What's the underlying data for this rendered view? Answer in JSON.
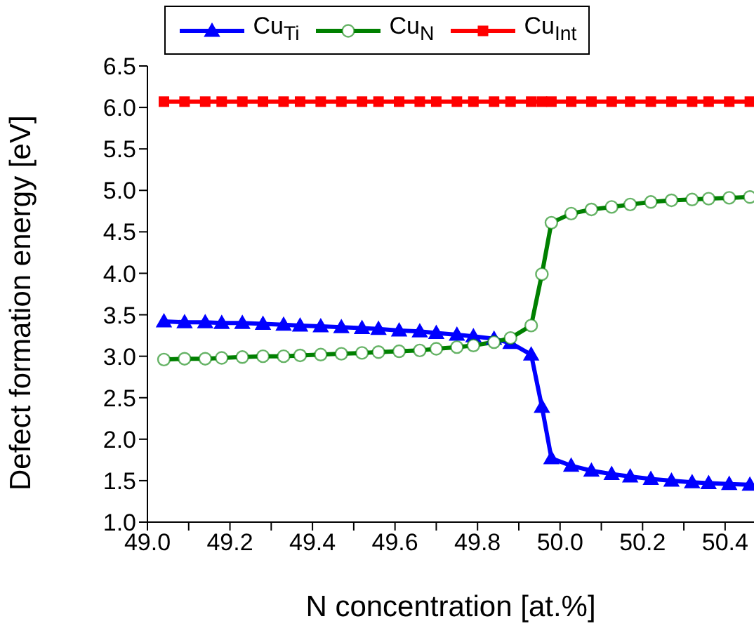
{
  "chart_data": {
    "type": "line",
    "xlabel": "N concentration [at.%]",
    "ylabel": "Defect formation energy [eV]",
    "x": [
      49.04,
      49.09,
      49.14,
      49.18,
      49.23,
      49.28,
      49.33,
      49.37,
      49.42,
      49.47,
      49.52,
      49.56,
      49.61,
      49.66,
      49.7,
      49.75,
      49.79,
      49.84,
      49.88,
      49.93,
      49.956,
      49.979,
      50.027,
      50.076,
      50.125,
      50.17,
      50.22,
      50.27,
      50.32,
      50.36,
      50.41,
      50.46
    ],
    "series": [
      {
        "name": "Cu$_{Ti}$",
        "color": "#0000ff",
        "marker": "triangle",
        "values": [
          3.42,
          3.41,
          3.41,
          3.4,
          3.4,
          3.39,
          3.38,
          3.37,
          3.36,
          3.35,
          3.34,
          3.33,
          3.31,
          3.3,
          3.28,
          3.26,
          3.24,
          3.21,
          3.16,
          3.02,
          2.39,
          1.77,
          1.68,
          1.62,
          1.58,
          1.55,
          1.52,
          1.5,
          1.48,
          1.47,
          1.46,
          1.45
        ]
      },
      {
        "name": "Cu$_{N}$",
        "color": "#008000",
        "marker": "circle",
        "values": [
          2.96,
          2.97,
          2.97,
          2.98,
          2.99,
          3.0,
          3.0,
          3.01,
          3.02,
          3.03,
          3.04,
          3.05,
          3.06,
          3.07,
          3.09,
          3.11,
          3.13,
          3.17,
          3.22,
          3.37,
          3.99,
          4.61,
          4.72,
          4.77,
          4.8,
          4.83,
          4.86,
          4.88,
          4.89,
          4.9,
          4.91,
          4.92
        ]
      },
      {
        "name": "Cu$_{Int}$",
        "color": "#ff0000",
        "marker": "square",
        "values": [
          6.07,
          6.07,
          6.07,
          6.07,
          6.07,
          6.07,
          6.07,
          6.07,
          6.07,
          6.07,
          6.07,
          6.07,
          6.07,
          6.07,
          6.07,
          6.07,
          6.07,
          6.07,
          6.07,
          6.07,
          6.07,
          6.07,
          6.07,
          6.07,
          6.07,
          6.07,
          6.07,
          6.07,
          6.07,
          6.07,
          6.07,
          6.07
        ]
      }
    ],
    "xlim": [
      49.0,
      50.47
    ],
    "xticks": [
      {
        "value": 49,
        "label": "49.0"
      },
      {
        "value": 49.1,
        "label": null
      },
      49.2,
      {
        "value": 49.3,
        "label": null
      },
      49.4,
      {
        "value": 49.5,
        "label": null
      },
      49.6,
      {
        "value": 49.7,
        "label": null
      },
      49.8,
      {
        "value": 49.9,
        "label": null
      },
      {
        "value": 50,
        "label": "50.0"
      },
      {
        "value": 50.1,
        "label": null
      },
      50.2,
      {
        "value": 50.3,
        "label": null
      },
      50.4
    ],
    "ylim": [
      1.0,
      6.5
    ],
    "yticks": [
      {
        "value": 1,
        "label": "1.0"
      },
      1.5,
      {
        "value": 2,
        "label": "2.0"
      },
      2.5,
      {
        "value": 3,
        "label": "3.0"
      },
      3.5,
      {
        "value": 4,
        "label": "4.0"
      },
      4.5,
      {
        "value": 5,
        "label": "5.0"
      },
      5.5,
      {
        "value": 6,
        "label": "6.0"
      },
      6.5
    ],
    "grid": false,
    "legend": "top",
    "line_style": "solid"
  }
}
